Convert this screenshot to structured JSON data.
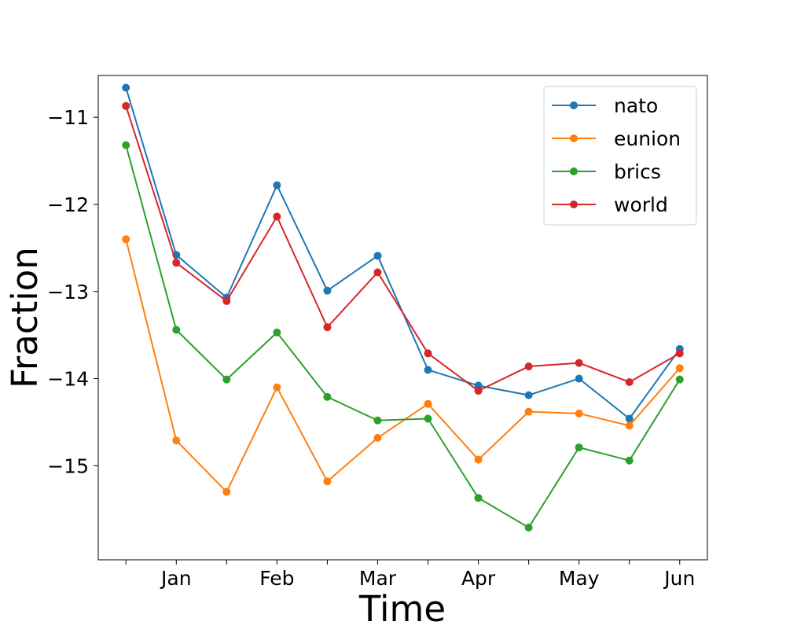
{
  "chart_data": {
    "type": "line",
    "title": "",
    "xlabel": "Time",
    "ylabel": "Fraction",
    "x": [
      0,
      1,
      2,
      3,
      4,
      5,
      6,
      7,
      8,
      9,
      10,
      11
    ],
    "xticks": [
      {
        "x": 0,
        "label": ""
      },
      {
        "x": 1,
        "label": "Jan"
      },
      {
        "x": 2,
        "label": ""
      },
      {
        "x": 3,
        "label": "Feb"
      },
      {
        "x": 4,
        "label": ""
      },
      {
        "x": 5,
        "label": "Mar"
      },
      {
        "x": 6,
        "label": ""
      },
      {
        "x": 7,
        "label": "Apr"
      },
      {
        "x": 8,
        "label": ""
      },
      {
        "x": 9,
        "label": "May"
      },
      {
        "x": 10,
        "label": ""
      },
      {
        "x": 11,
        "label": "Jun"
      }
    ],
    "xlim": [
      -0.55,
      11.55
    ],
    "yticks": [
      -15,
      -14,
      -13,
      -12,
      -11
    ],
    "ytick_labels": [
      "−15",
      "−14",
      "−13",
      "−12",
      "−11"
    ],
    "ylim": [
      -16.08,
      -10.52
    ],
    "grid": false,
    "legend_position": "top-right",
    "series": [
      {
        "name": "nato",
        "color": "#1f77b4",
        "values": [
          -10.66,
          -12.58,
          -13.07,
          -11.78,
          -12.99,
          -12.59,
          -13.9,
          -14.08,
          -14.19,
          -14.0,
          -14.46,
          -13.66
        ]
      },
      {
        "name": "eunion",
        "color": "#ff7f0e",
        "values": [
          -12.4,
          -14.71,
          -15.3,
          -14.1,
          -15.18,
          -14.68,
          -14.29,
          -14.93,
          -14.38,
          -14.4,
          -14.54,
          -13.88
        ]
      },
      {
        "name": "brics",
        "color": "#2ca02c",
        "values": [
          -11.32,
          -13.44,
          -14.01,
          -13.47,
          -14.21,
          -14.48,
          -14.46,
          -15.37,
          -15.71,
          -14.79,
          -14.94,
          -14.01
        ]
      },
      {
        "name": "world",
        "color": "#d62728",
        "values": [
          -10.87,
          -12.67,
          -13.11,
          -12.14,
          -13.41,
          -12.78,
          -13.71,
          -14.14,
          -13.86,
          -13.82,
          -14.04,
          -13.71
        ]
      }
    ]
  }
}
